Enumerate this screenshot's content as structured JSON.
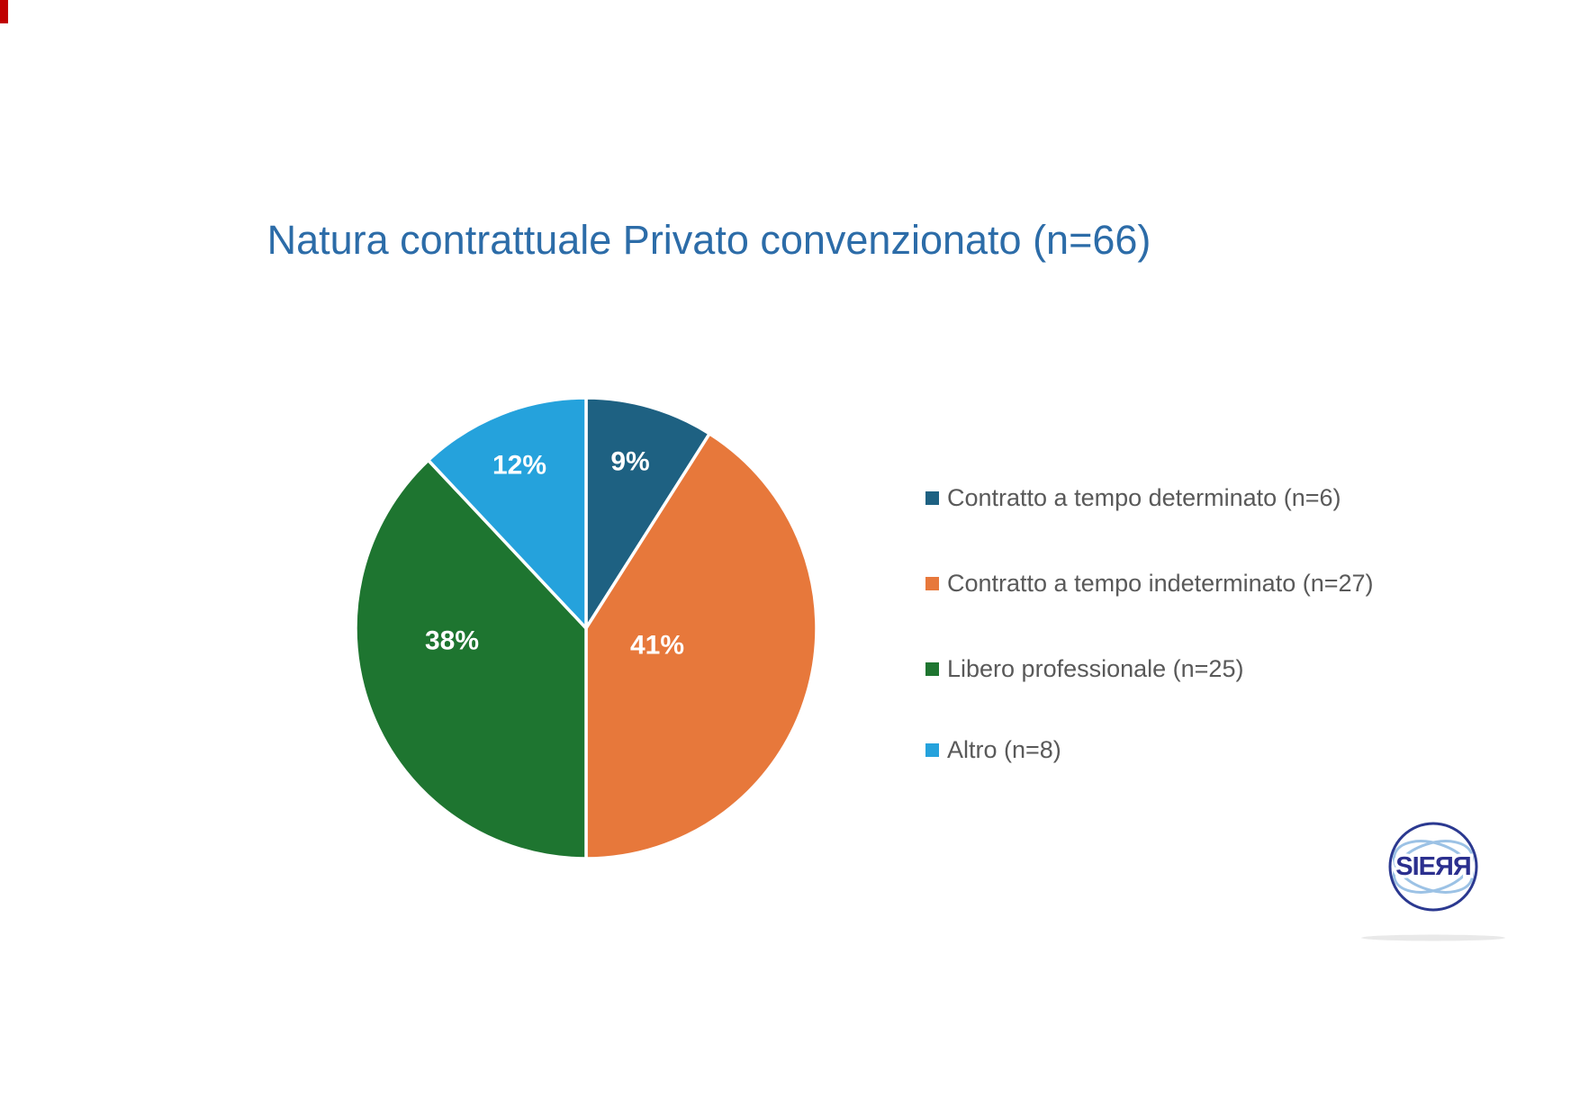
{
  "slide": {
    "background": "#FFFFFF",
    "edge_mark_color": "#C00000"
  },
  "title": {
    "text": "Natura contrattuale Privato convenzionato (n=66)",
    "color": "#2C6CA8"
  },
  "chart_data": {
    "type": "pie",
    "title": "Natura contrattuale Privato convenzionato (n=66)",
    "total": 66,
    "start_angle_deg": 0,
    "direction": "clockwise",
    "legend_position": "right",
    "slice_border_color": "#FFFFFF",
    "percent_label_color": "#FFFFFF",
    "legend_text_color": "#595959",
    "slices": [
      {
        "category": "Contratto a tempo determinato",
        "legend_label": "Contratto a tempo determinato (n=6)",
        "n": 6,
        "percent": 9,
        "percent_label": "9%",
        "color": "#1E6182"
      },
      {
        "category": "Contratto a tempo indeterminato",
        "legend_label": "Contratto a tempo indeterminato (n=27)",
        "n": 27,
        "percent": 41,
        "percent_label": "41%",
        "color": "#E7783B"
      },
      {
        "category": "Libero professionale",
        "legend_label": "Libero professionale (n=25)",
        "n": 25,
        "percent": 38,
        "percent_label": "38%",
        "color": "#1E7530"
      },
      {
        "category": "Altro",
        "legend_label": "Altro (n=8)",
        "n": 8,
        "percent": 12,
        "percent_label": "12%",
        "color": "#25A2DC"
      }
    ]
  },
  "logo": {
    "text": "SIERR",
    "display_text": "SIEЯЯ",
    "ring_color": "#2B3990",
    "lines_color": "#9CC2E5",
    "text_color": "#2B2F8E",
    "shadow_color": "#E9E9E9"
  }
}
